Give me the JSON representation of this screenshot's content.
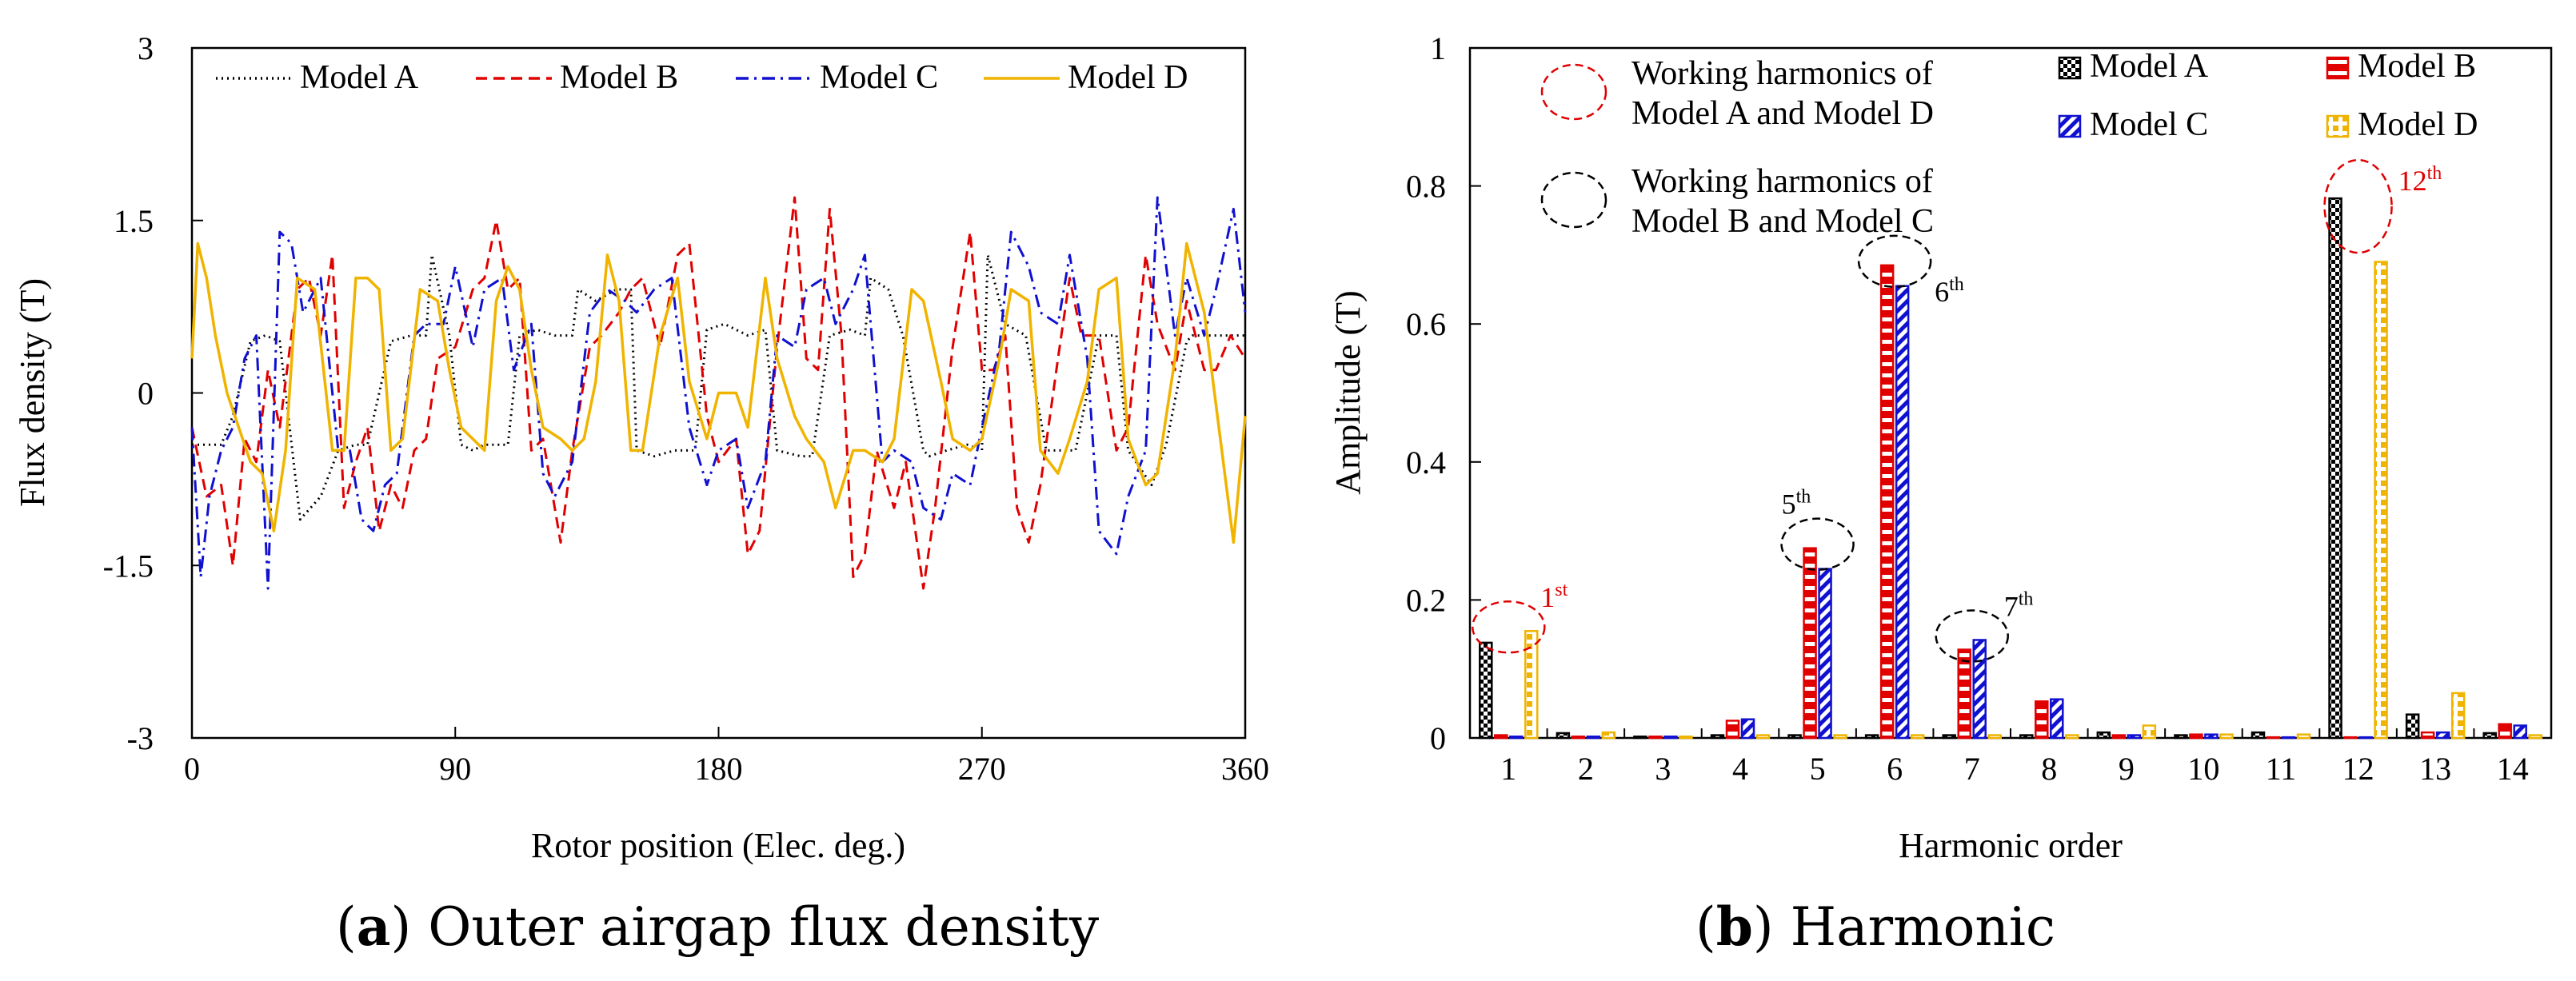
{
  "chart_data": [
    {
      "type": "line",
      "caption_letter": "a",
      "caption_text": "Outer airgap flux density",
      "xlabel": "Rotor position (Elec. deg.)",
      "ylabel": "Flux density (T)",
      "xlim": [
        0,
        360
      ],
      "ylim": [
        -3,
        3
      ],
      "xticks": [
        0,
        90,
        180,
        270,
        360
      ],
      "xtick_labels": [
        "0",
        "90",
        "180",
        "270",
        "360"
      ],
      "yticks": [
        -3,
        -1.5,
        0,
        1.5,
        3
      ],
      "ytick_labels": [
        "-3",
        "-1.5",
        "0",
        "1.5",
        "3"
      ],
      "grid": false,
      "legend_position": "top",
      "series": [
        {
          "name": "Model A",
          "color": "#000000",
          "style": "dotted",
          "x": [
            0,
            10,
            14,
            20,
            25,
            30,
            37,
            44,
            50,
            56,
            60,
            68,
            75,
            80,
            82,
            88,
            92,
            96,
            100,
            108,
            112,
            118,
            124,
            130,
            132,
            138,
            145,
            150,
            152,
            158,
            165,
            172,
            176,
            182,
            190,
            196,
            200,
            208,
            212,
            218,
            225,
            230,
            232,
            238,
            243,
            250,
            252,
            258,
            265,
            270,
            272,
            278,
            285,
            292,
            296,
            302,
            310,
            316,
            320,
            328,
            333,
            340,
            342,
            348,
            355,
            360
          ],
          "y": [
            -0.45,
            -0.45,
            -0.2,
            0.45,
            0.5,
            0.45,
            -1.1,
            -0.9,
            -0.5,
            -0.45,
            -0.45,
            0.45,
            0.5,
            0.5,
            1.2,
            0.5,
            -0.45,
            -0.5,
            -0.45,
            -0.45,
            0.5,
            0.55,
            0.5,
            0.5,
            0.9,
            0.8,
            0.9,
            0.9,
            -0.5,
            -0.55,
            -0.5,
            -0.5,
            0.55,
            0.6,
            0.5,
            0.55,
            -0.5,
            -0.55,
            -0.55,
            0.5,
            0.55,
            0.5,
            1.0,
            0.9,
            0.5,
            -0.5,
            -0.55,
            -0.5,
            -0.45,
            -0.5,
            1.2,
            0.6,
            0.5,
            -0.5,
            -0.5,
            -0.5,
            0.5,
            0.5,
            -0.5,
            -0.8,
            -0.45,
            0.45,
            0.5,
            0.5,
            0.5,
            0.5
          ]
        },
        {
          "name": "Model B",
          "color": "#e00000",
          "style": "dashed",
          "x": [
            0,
            5,
            10,
            14,
            18,
            22,
            26,
            30,
            36,
            40,
            44,
            48,
            52,
            56,
            60,
            64,
            68,
            72,
            76,
            80,
            84,
            90,
            96,
            100,
            104,
            108,
            112,
            116,
            120,
            126,
            130,
            136,
            140,
            146,
            150,
            154,
            160,
            166,
            170,
            176,
            180,
            186,
            190,
            194,
            200,
            206,
            210,
            214,
            218,
            222,
            226,
            230,
            234,
            240,
            244,
            250,
            254,
            260,
            266,
            270,
            274,
            278,
            282,
            286,
            290,
            296,
            300,
            304,
            310,
            316,
            320,
            326,
            330,
            336,
            340,
            346,
            350,
            355,
            360
          ],
          "y": [
            -0.3,
            -0.9,
            -0.8,
            -1.5,
            -0.4,
            -0.6,
            0.2,
            -0.3,
            0.9,
            1.0,
            0.5,
            1.2,
            -1.0,
            -0.6,
            -0.3,
            -1.2,
            -0.8,
            -1.0,
            -0.5,
            -0.4,
            0.3,
            0.4,
            0.9,
            1.0,
            1.5,
            0.9,
            1.0,
            -0.5,
            -0.4,
            -1.3,
            -0.5,
            0.4,
            0.5,
            0.7,
            0.9,
            1.0,
            0.4,
            1.2,
            1.3,
            -0.2,
            -0.6,
            -0.4,
            -1.4,
            -1.2,
            0.4,
            1.7,
            0.3,
            0.2,
            1.6,
            0.5,
            -1.6,
            -1.4,
            -0.5,
            -1.0,
            -0.6,
            -1.7,
            -1.0,
            0.4,
            1.4,
            0.2,
            0.2,
            0.5,
            -1.0,
            -1.3,
            -0.8,
            0.3,
            1.0,
            0.5,
            0.5,
            -0.5,
            -0.3,
            1.2,
            0.6,
            0.2,
            0.8,
            0.2,
            0.2,
            0.5,
            0.3
          ]
        },
        {
          "name": "Model C",
          "color": "#1010d0",
          "style": "dashdot",
          "x": [
            0,
            3,
            6,
            10,
            14,
            18,
            22,
            26,
            30,
            34,
            38,
            44,
            50,
            54,
            58,
            62,
            66,
            70,
            76,
            80,
            86,
            90,
            96,
            100,
            106,
            110,
            116,
            120,
            124,
            130,
            136,
            142,
            148,
            152,
            158,
            164,
            170,
            176,
            180,
            186,
            190,
            196,
            200,
            206,
            210,
            216,
            220,
            226,
            230,
            236,
            240,
            246,
            250,
            256,
            260,
            266,
            270,
            276,
            280,
            286,
            290,
            296,
            300,
            306,
            310,
            316,
            320,
            326,
            330,
            336,
            340,
            346,
            350,
            356,
            360
          ],
          "y": [
            -0.3,
            -1.6,
            -0.9,
            -0.5,
            -0.3,
            0.3,
            0.5,
            -1.7,
            1.4,
            1.3,
            0.7,
            1.0,
            -0.5,
            -0.5,
            -1.1,
            -1.2,
            -0.8,
            -0.7,
            0.5,
            0.6,
            0.6,
            1.1,
            0.4,
            0.9,
            1.0,
            0.2,
            0.6,
            -0.7,
            -0.9,
            -0.6,
            0.7,
            0.9,
            0.8,
            0.7,
            0.9,
            1.0,
            -0.3,
            -0.8,
            -0.5,
            -0.4,
            -1.0,
            -0.6,
            0.5,
            0.4,
            0.9,
            1.0,
            0.6,
            0.9,
            1.2,
            -0.6,
            -0.5,
            -0.6,
            -1.0,
            -1.1,
            -0.7,
            -0.8,
            -0.3,
            0.4,
            1.4,
            1.1,
            0.7,
            0.6,
            1.2,
            0.3,
            -1.2,
            -1.4,
            -0.9,
            -0.5,
            1.7,
            0.5,
            1.0,
            0.5,
            0.9,
            1.6,
            0.7
          ]
        },
        {
          "name": "Model D",
          "color": "#f0b400",
          "style": "solid",
          "x": [
            0,
            2,
            5,
            8,
            12,
            16,
            20,
            24,
            28,
            32,
            36,
            42,
            48,
            52,
            56,
            60,
            64,
            68,
            72,
            78,
            84,
            88,
            92,
            96,
            100,
            104,
            108,
            112,
            116,
            120,
            126,
            130,
            134,
            138,
            142,
            146,
            150,
            154,
            160,
            166,
            170,
            176,
            180,
            186,
            190,
            196,
            200,
            206,
            210,
            216,
            220,
            226,
            230,
            236,
            240,
            246,
            250,
            256,
            260,
            266,
            270,
            276,
            280,
            286,
            290,
            296,
            300,
            306,
            310,
            316,
            320,
            326,
            330,
            336,
            340,
            346,
            350,
            356,
            360
          ],
          "y": [
            0.3,
            1.3,
            1.0,
            0.5,
            0.0,
            -0.3,
            -0.6,
            -0.7,
            -1.2,
            -0.5,
            1.0,
            0.9,
            -0.5,
            -0.5,
            1.0,
            1.0,
            0.9,
            -0.5,
            -0.4,
            0.9,
            0.8,
            0.2,
            -0.3,
            -0.4,
            -0.5,
            0.8,
            1.1,
            0.9,
            0.2,
            -0.3,
            -0.4,
            -0.5,
            -0.4,
            0.1,
            1.2,
            0.8,
            -0.5,
            -0.5,
            0.5,
            1.0,
            0.1,
            -0.4,
            0.0,
            0.0,
            -0.3,
            1.0,
            0.3,
            -0.2,
            -0.4,
            -0.6,
            -1.0,
            -0.5,
            -0.5,
            -0.6,
            -0.4,
            0.9,
            0.8,
            0.1,
            -0.4,
            -0.5,
            -0.4,
            0.3,
            0.9,
            0.8,
            -0.5,
            -0.7,
            -0.4,
            0.1,
            0.9,
            1.0,
            -0.4,
            -0.8,
            -0.7,
            0.3,
            1.3,
            0.7,
            -0.1,
            -1.3,
            -0.2
          ]
        }
      ]
    },
    {
      "type": "bar",
      "caption_letter": "b",
      "caption_text": "Harmonic",
      "xlabel": "Harmonic order",
      "ylabel": "Amplitude (T)",
      "ylim": [
        0,
        1
      ],
      "yticks": [
        0,
        0.2,
        0.4,
        0.6,
        0.8,
        1
      ],
      "ytick_labels": [
        "0",
        "0.2",
        "0.4",
        "0.6",
        "0.8",
        "1"
      ],
      "categories": [
        "1",
        "2",
        "3",
        "4",
        "5",
        "6",
        "7",
        "8",
        "9",
        "10",
        "11",
        "12",
        "13",
        "14"
      ],
      "grid": false,
      "legend_position": "top-right",
      "series": [
        {
          "name": "Model A",
          "color": "#000000",
          "values": [
            0.138,
            0.007,
            0.002,
            0.004,
            0.004,
            0.004,
            0.004,
            0.004,
            0.008,
            0.004,
            0.008,
            0.782,
            0.034,
            0.007
          ]
        },
        {
          "name": "Model B",
          "color": "#e00000",
          "values": [
            0.004,
            0.002,
            0.002,
            0.025,
            0.275,
            0.685,
            0.128,
            0.053,
            0.004,
            0.005,
            0.001,
            0.001,
            0.008,
            0.02
          ]
        },
        {
          "name": "Model C",
          "color": "#1010d0",
          "values": [
            0.002,
            0.002,
            0.002,
            0.027,
            0.245,
            0.655,
            0.142,
            0.056,
            0.004,
            0.005,
            0.001,
            0.001,
            0.008,
            0.018
          ]
        },
        {
          "name": "Model D",
          "color": "#f0b400",
          "values": [
            0.155,
            0.008,
            0.002,
            0.004,
            0.004,
            0.004,
            0.004,
            0.004,
            0.018,
            0.005,
            0.005,
            0.69,
            0.065,
            0.004
          ]
        }
      ],
      "annotations": [
        {
          "label": "1",
          "sup": "st",
          "color": "#e00000",
          "category": 1
        },
        {
          "label": "5",
          "sup": "th",
          "color": "#000000",
          "category": 5
        },
        {
          "label": "6",
          "sup": "th",
          "color": "#000000",
          "category": 6
        },
        {
          "label": "7",
          "sup": "th",
          "color": "#000000",
          "category": 7
        },
        {
          "label": "12",
          "sup": "th",
          "color": "#e00000",
          "category": 12
        }
      ],
      "circle_legend": [
        {
          "line1": "Working harmonics of",
          "line2": "Model A and Model D",
          "color": "#e00000"
        },
        {
          "line1": "Working harmonics of",
          "line2": "Model B and Model C",
          "color": "#000000"
        }
      ]
    }
  ]
}
